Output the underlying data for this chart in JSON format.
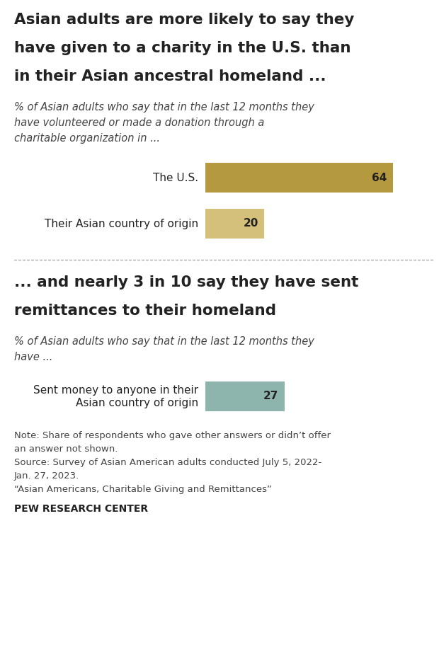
{
  "title1": "Asian adults are more likely to say they\nhave given to a charity in the U.S. than\nin their Asian ancestral homeland ...",
  "subtitle1": "% of Asian adults who say that in the last 12 months they\nhave volunteered or made a donation through a\ncharitable organization in ...",
  "bars1_labels": [
    "The U.S.",
    "Their Asian country of origin"
  ],
  "bars1_values": [
    64,
    20
  ],
  "bars1_colors": [
    "#b5993e",
    "#d4c07a"
  ],
  "title2": "... and nearly 3 in 10 say they have sent\nremittances to their homeland",
  "subtitle2": "% of Asian adults who say that in the last 12 months they\nhave ...",
  "bars2_labels": [
    "Sent money to anyone in their\nAsian country of origin"
  ],
  "bars2_values": [
    27
  ],
  "bars2_colors": [
    "#8db5ae"
  ],
  "note_line1": "Note: Share of respondents who gave other answers or didn’t offer",
  "note_line2": "an answer not shown.",
  "note_line3": "Source: Survey of Asian American adults conducted July 5, 2022-",
  "note_line4": "Jan. 27, 2023.",
  "note_line5": "“Asian Americans, Charitable Giving and Remittances”",
  "footer": "PEW RESEARCH CENTER",
  "bar_max_val": 75,
  "bg_color": "#ffffff",
  "title_fontsize": 15.5,
  "subtitle_fontsize": 10.5,
  "label_fontsize": 11,
  "value_fontsize": 11,
  "note_fontsize": 9.5,
  "footer_fontsize": 10,
  "text_color": "#222222",
  "subtitle_color": "#444444",
  "note_color": "#444444"
}
